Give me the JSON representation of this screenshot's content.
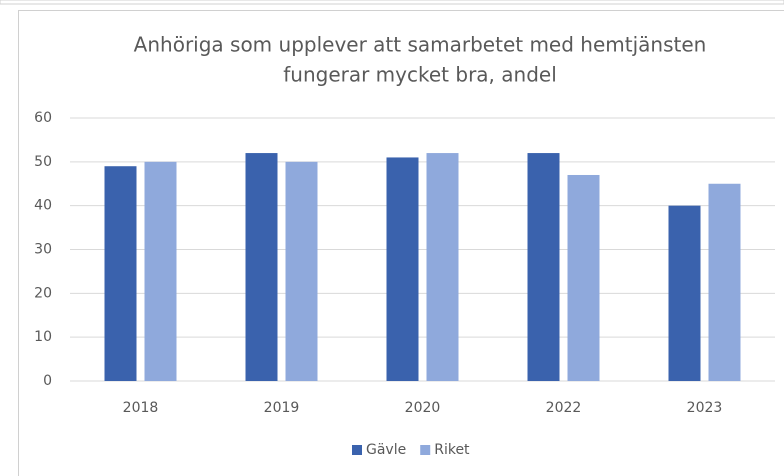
{
  "chart_data": {
    "type": "bar",
    "title": [
      "Anhöriga som upplever att samarbetet med hemtjänsten",
      "fungerar mycket bra, andel"
    ],
    "categories": [
      "2018",
      "2019",
      "2020",
      "2022",
      "2023"
    ],
    "series": [
      {
        "name": "Gävle",
        "color": "#3a62ad",
        "values": [
          49,
          52,
          51,
          52,
          40
        ]
      },
      {
        "name": "Riket",
        "color": "#8fa9dc",
        "values": [
          50,
          50,
          52,
          47,
          45
        ]
      }
    ],
    "ylim": [
      0,
      60
    ],
    "yticks": [
      0,
      10,
      20,
      30,
      40,
      50,
      60
    ],
    "grid": true,
    "legend": "bottom"
  }
}
